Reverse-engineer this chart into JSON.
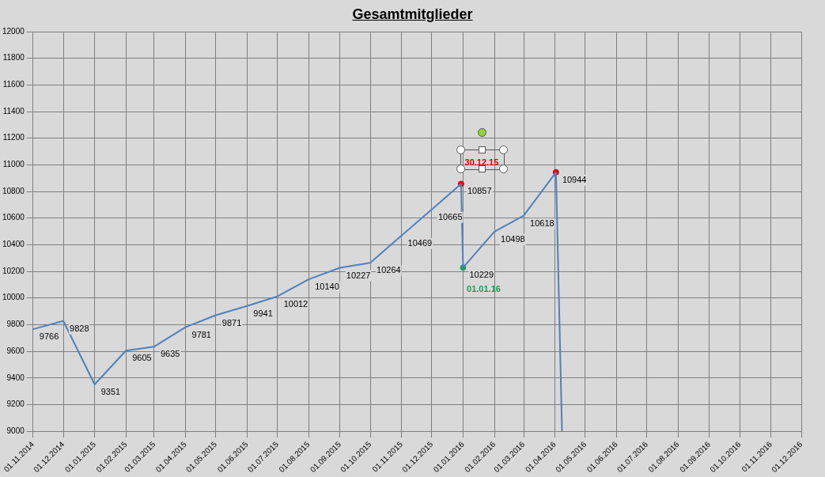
{
  "chart_data": {
    "type": "line",
    "title": "Gesamtmitglieder",
    "series": [
      {
        "color": "#4f81bd",
        "marker": "none",
        "x": [
          "2014-11-01",
          "2014-12-01",
          "2015-01-01",
          "2015-02-01",
          "2015-03-01",
          "2015-04-01",
          "2015-05-01",
          "2015-06-01",
          "2015-07-01",
          "2015-08-01",
          "2015-09-01",
          "2015-10-01",
          "2015-11-01",
          "2015-12-01",
          "2015-12-30",
          "2016-01-01",
          "2016-02-01",
          "2016-03-01",
          "2016-04-02",
          "2016-04-08"
        ],
        "values": [
          9766,
          9828,
          9351,
          9605,
          9635,
          9781,
          9871,
          9941,
          10012,
          10140,
          10227,
          10264,
          10469,
          10665,
          10857,
          10229,
          10498,
          10618,
          10944,
          9000
        ],
        "value_labels": [
          "9766",
          "9828",
          "9351",
          "9605",
          "9635",
          "9781",
          "9871",
          "9941",
          "10012",
          "10140",
          "10227",
          "10264",
          "10469",
          "10665",
          "10857",
          "10229",
          "10498",
          "10618",
          "10944",
          null
        ]
      },
      {
        "type": "scatter",
        "marker": "circle",
        "x": [
          "2015-12-30",
          "2016-01-01",
          "2016-04-02"
        ],
        "values": [
          10857,
          10229,
          10944
        ],
        "colors": [
          "#e00000",
          "#1aa05a",
          "#e00000"
        ]
      }
    ],
    "annotations": [
      {
        "text": "30.12.15",
        "x": "2015-12-30",
        "y": 10857
      },
      {
        "text": "01.01.16",
        "x": "2016-01-01",
        "y": 10229
      }
    ],
    "ylim": [
      9000,
      12000
    ],
    "yticks": [
      9000,
      9200,
      9400,
      9600,
      9800,
      10000,
      10200,
      10400,
      10600,
      10800,
      11000,
      11200,
      11400,
      11600,
      11800,
      12000
    ],
    "xlim": [
      "2014-11-01",
      "2016-12-01"
    ],
    "xticks": [
      {
        "value": "2014-11-01",
        "label": "01.11.2014"
      },
      {
        "value": "2014-12-01",
        "label": "01.12.2014"
      },
      {
        "value": "2015-01-01",
        "label": "01.01.2015"
      },
      {
        "value": "2015-02-01",
        "label": "01.02.2015"
      },
      {
        "value": "2015-03-01",
        "label": "01.03.2015"
      },
      {
        "value": "2015-04-01",
        "label": "01.04.2015"
      },
      {
        "value": "2015-05-01",
        "label": "01.05.2015"
      },
      {
        "value": "2015-06-01",
        "label": "01.06.2015"
      },
      {
        "value": "2015-07-01",
        "label": "01.07.2015"
      },
      {
        "value": "2015-08-01",
        "label": "01.08.2015"
      },
      {
        "value": "2015-09-01",
        "label": "01.09.2015"
      },
      {
        "value": "2015-10-01",
        "label": "01.10.2015"
      },
      {
        "value": "2015-11-01",
        "label": "01.11.2015"
      },
      {
        "value": "2015-12-01",
        "label": "01.12.2015"
      },
      {
        "value": "2016-01-01",
        "label": "01.01.2016"
      },
      {
        "value": "2016-02-01",
        "label": "01.02.2016"
      },
      {
        "value": "2016-03-01",
        "label": "01.03.2016"
      },
      {
        "value": "2016-04-01",
        "label": "01.04.2016"
      },
      {
        "value": "2016-05-01",
        "label": "01.05.2016"
      },
      {
        "value": "2016-06-01",
        "label": "01.06.2016"
      },
      {
        "value": "2016-07-01",
        "label": "01.07.2016"
      },
      {
        "value": "2016-08-01",
        "label": "01.08.2016"
      },
      {
        "value": "2016-09-01",
        "label": "01.09.2016"
      },
      {
        "value": "2016-10-01",
        "label": "01.10.2016"
      },
      {
        "value": "2016-11-01",
        "label": "01.11.2016"
      },
      {
        "value": "2016-12-01",
        "label": "01.12.2016"
      }
    ],
    "grid": true,
    "legend": false,
    "line_style": "solid"
  }
}
